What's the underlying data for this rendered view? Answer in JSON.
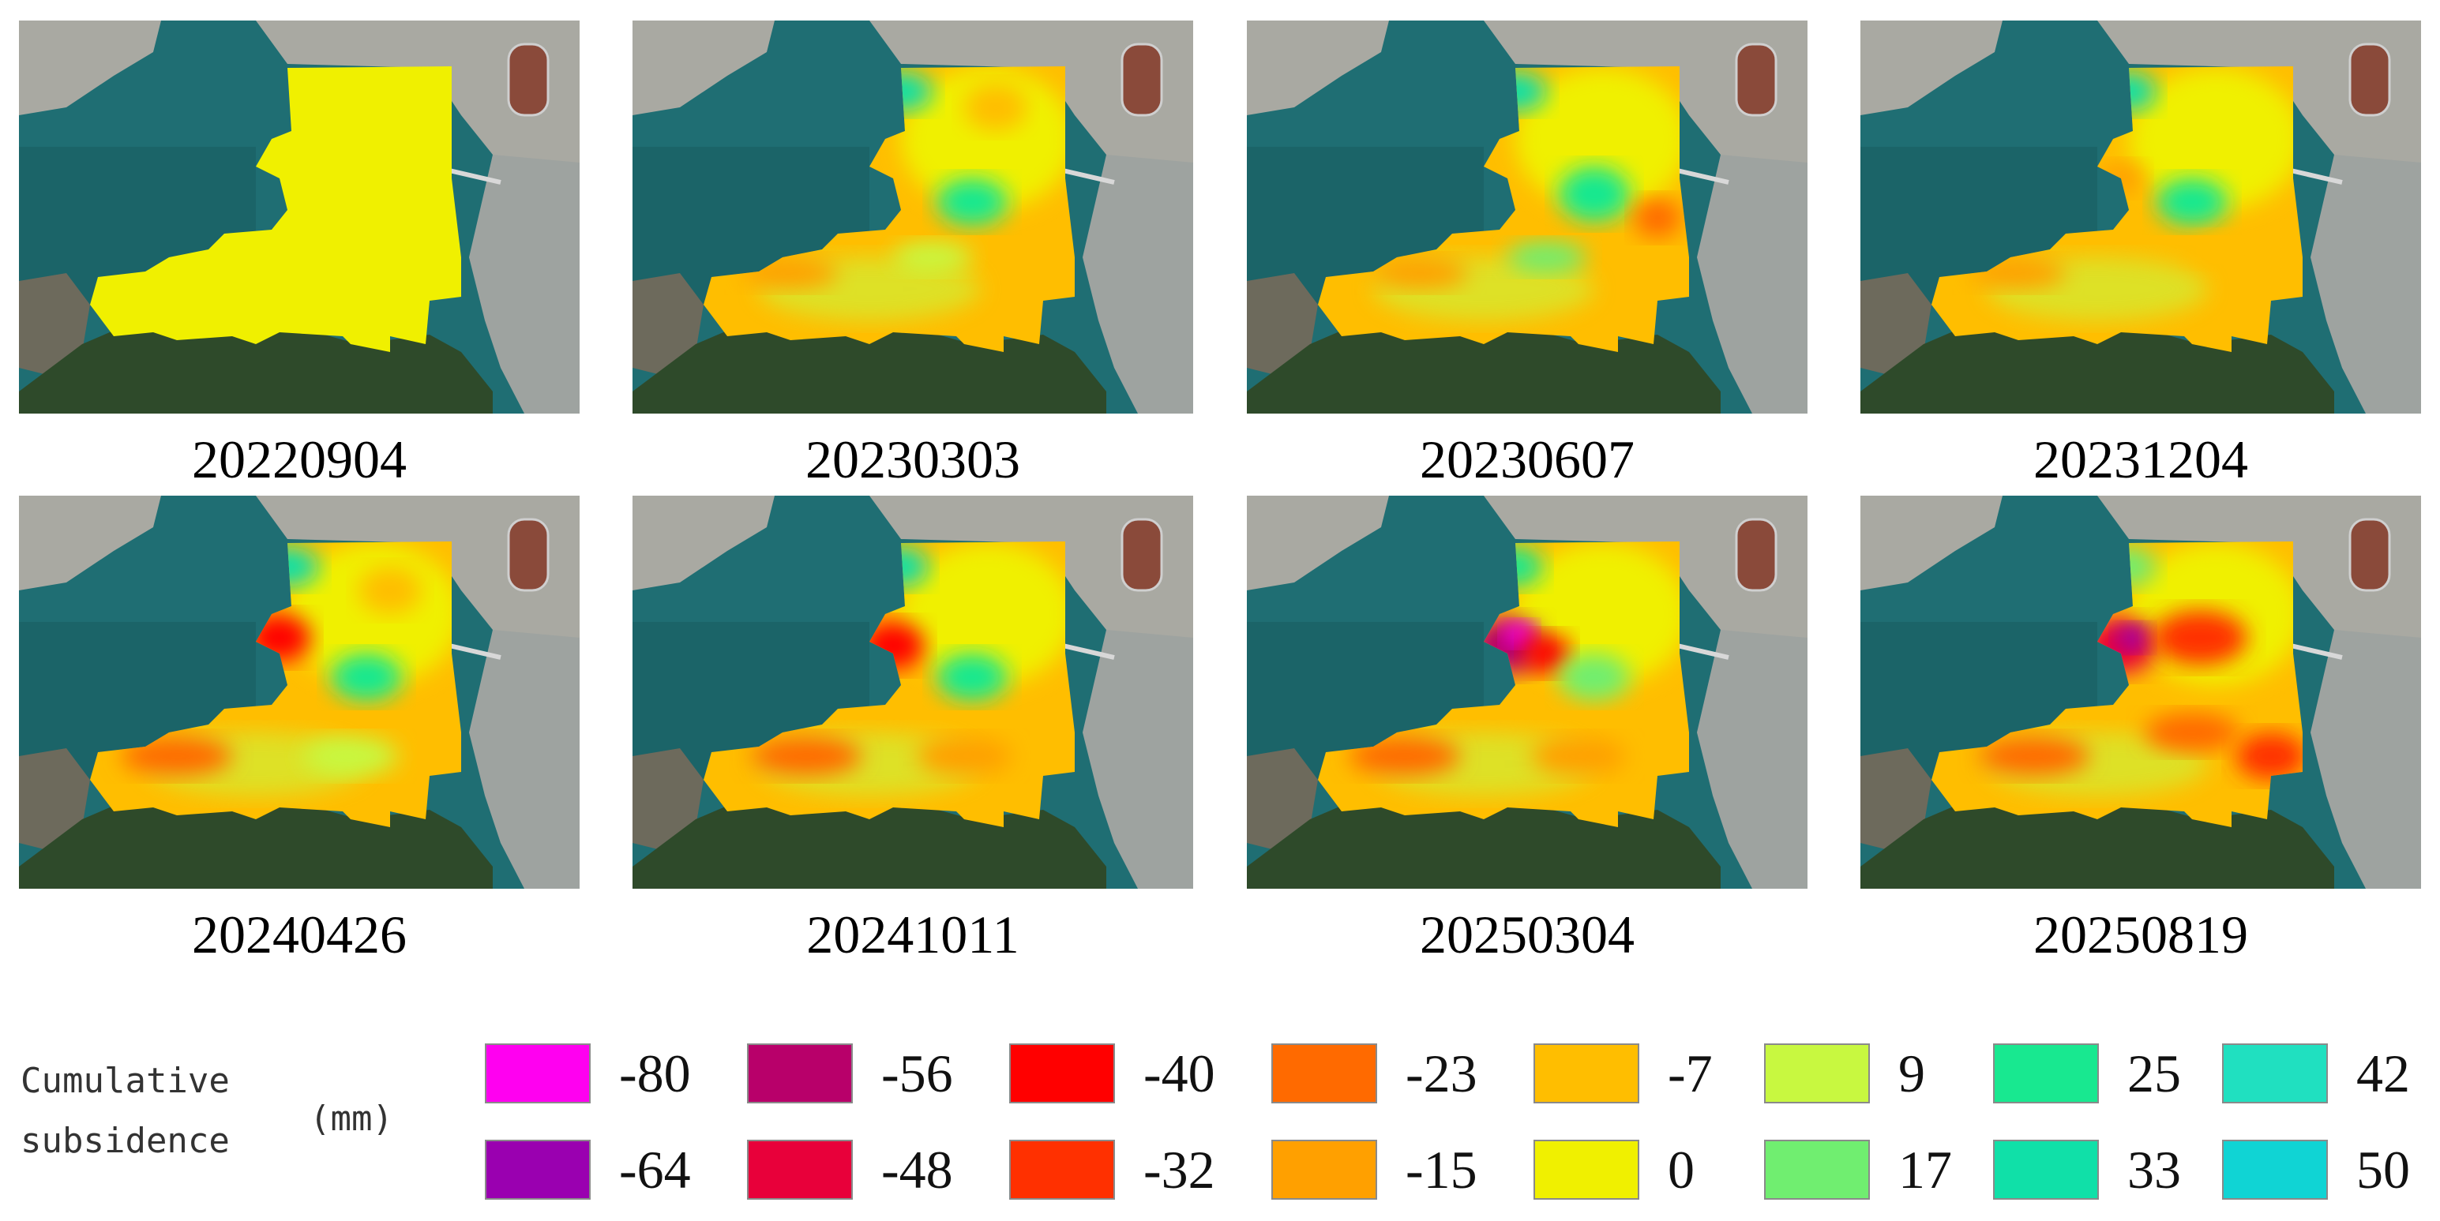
{
  "panels": [
    {
      "date": "20220904"
    },
    {
      "date": "20230303"
    },
    {
      "date": "20230607"
    },
    {
      "date": "20231204"
    },
    {
      "date": "20240426"
    },
    {
      "date": "20241011"
    },
    {
      "date": "20250304"
    },
    {
      "date": "20250819"
    }
  ],
  "legend": {
    "title_line1": "Cumulative",
    "title_line2": "subsidence",
    "unit": "(mm)",
    "classes": [
      {
        "value": "-80",
        "color": "#ff00f0"
      },
      {
        "value": "-64",
        "color": "#9a00b0"
      },
      {
        "value": "-56",
        "color": "#b8006a"
      },
      {
        "value": "-48",
        "color": "#e8003a"
      },
      {
        "value": "-40",
        "color": "#ff0000"
      },
      {
        "value": "-32",
        "color": "#ff3000"
      },
      {
        "value": "-23",
        "color": "#ff6a00"
      },
      {
        "value": "-15",
        "color": "#ffa000"
      },
      {
        "value": "-7",
        "color": "#ffbe00"
      },
      {
        "value": "0",
        "color": "#f0f000"
      },
      {
        "value": "9",
        "color": "#c8f840"
      },
      {
        "value": "17",
        "color": "#70ee70"
      },
      {
        "value": "25",
        "color": "#18e890"
      },
      {
        "value": "33",
        "color": "#10e0a8"
      },
      {
        "value": "42",
        "color": "#20e0c0"
      },
      {
        "value": "50",
        "color": "#10d4d4"
      }
    ]
  },
  "colors": {
    "sea": "#1f6e73",
    "sea_deep": "#18595e",
    "land_urban": "#a9a9a2",
    "vegetation": "#2e4a2a"
  }
}
